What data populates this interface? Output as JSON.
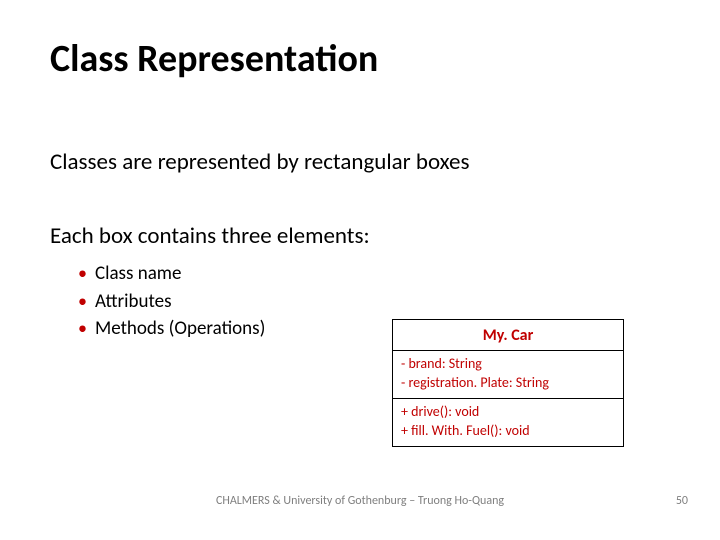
{
  "title": "Class Representation",
  "line1": "Classes are represented by rectangular boxes",
  "line2": "Each box contains three elements:",
  "bullets": {
    "items": [
      {
        "text": "Class name"
      },
      {
        "text": "Attributes"
      },
      {
        "text": "Methods (Operations)"
      }
    ]
  },
  "uml": {
    "class_name": "My. Car",
    "attributes": [
      "- brand: String",
      "- registration. Plate: String"
    ],
    "methods": [
      "+ drive(): void",
      "+ fill. With. Fuel(): void"
    ],
    "colors": {
      "border": "#000000",
      "text": "#c00000",
      "background": "#ffffff"
    }
  },
  "footer": "CHALMERS & University of Gothenburg – Truong Ho-Quang",
  "page_number": "50",
  "styling": {
    "title_fontsize": 38,
    "body_fontsize": 23,
    "bullet_fontsize": 19,
    "bullet_color": "#c00000",
    "text_color": "#000000",
    "footer_color": "#7f7f7f",
    "background_color": "#ffffff",
    "font_family": "Calibri"
  }
}
